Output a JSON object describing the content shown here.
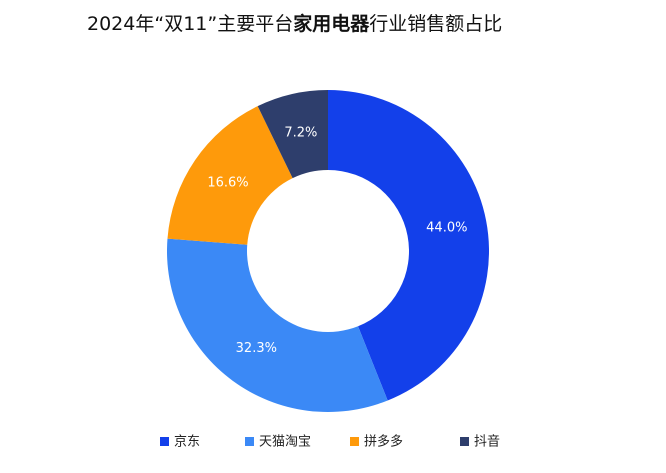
{
  "chart_data": {
    "type": "donut",
    "title": [
      "2024年“双11”主要平台",
      "家用电器",
      "行业销售额占比"
    ],
    "categories": [
      "京东",
      "天猫淘宝",
      "拼多多",
      "抖音"
    ],
    "values": [
      44.0,
      32.3,
      16.6,
      7.2
    ],
    "value_labels": [
      "44.0%",
      "32.3%",
      "16.6%",
      "7.2%"
    ],
    "colors": [
      "#1340ea",
      "#3b89f6",
      "#fe9a0b",
      "#2e3e6c"
    ]
  }
}
